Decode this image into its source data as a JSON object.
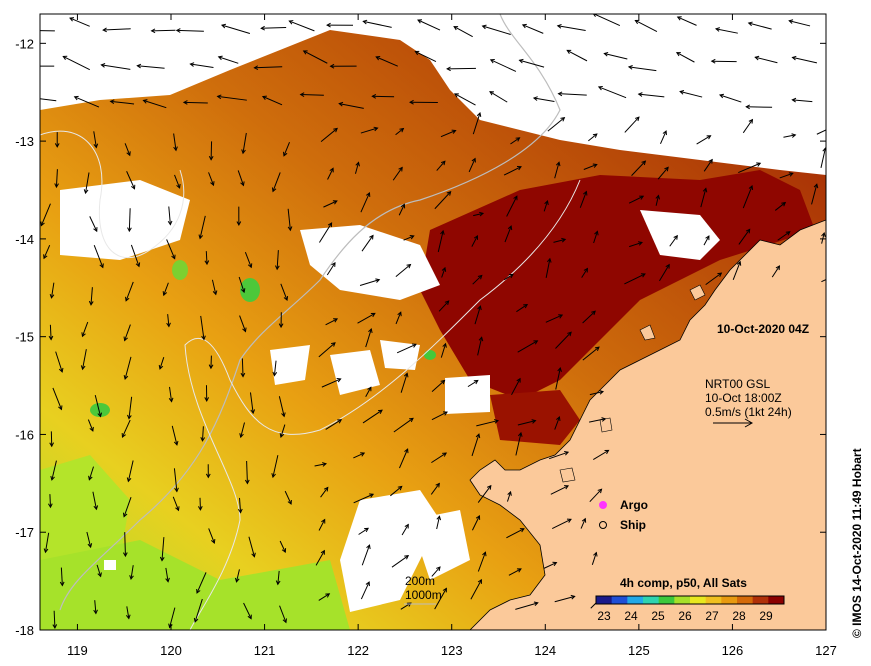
{
  "map": {
    "timestamp": "10-Oct-2020 04Z",
    "current_vectors": {
      "line1": "NRT00 GSL",
      "line2": "10-Oct 18:00Z",
      "line3": "0.5m/s (1kt 24h)"
    },
    "legend": {
      "argo_label": "Argo",
      "ship_label": "Ship",
      "argo_color": "#ff33ff"
    },
    "isobaths": [
      "200m",
      "1000m"
    ],
    "colorbar": {
      "title": "4h comp, p50, All Sats",
      "ticks": [
        "23",
        "24",
        "25",
        "26",
        "27",
        "28",
        "29"
      ],
      "colors": [
        "#1a1a8a",
        "#1f4fd6",
        "#22a9e8",
        "#2fd3b0",
        "#3cc83c",
        "#a6e02a",
        "#e8e820",
        "#f0c020",
        "#e89a10",
        "#d46a0a",
        "#b03008",
        "#8a0000"
      ]
    },
    "credit": "© IMOS 14-Oct-2020 11:49 Hobart",
    "colors": {
      "land": "#fbc99a",
      "cloud": "#ffffff",
      "warm": "#8a0000",
      "orange": "#d77a10",
      "yellow": "#f0c020",
      "green": "#9ae02a"
    }
  },
  "axes": {
    "x_ticks": [
      "119",
      "120",
      "121",
      "122",
      "123",
      "124",
      "125",
      "126",
      "127"
    ],
    "y_ticks": [
      "-12",
      "-13",
      "-14",
      "-15",
      "-16",
      "-17",
      "-18"
    ],
    "xlim": [
      118.6,
      127
    ],
    "ylim": [
      -18,
      -11.7
    ]
  }
}
